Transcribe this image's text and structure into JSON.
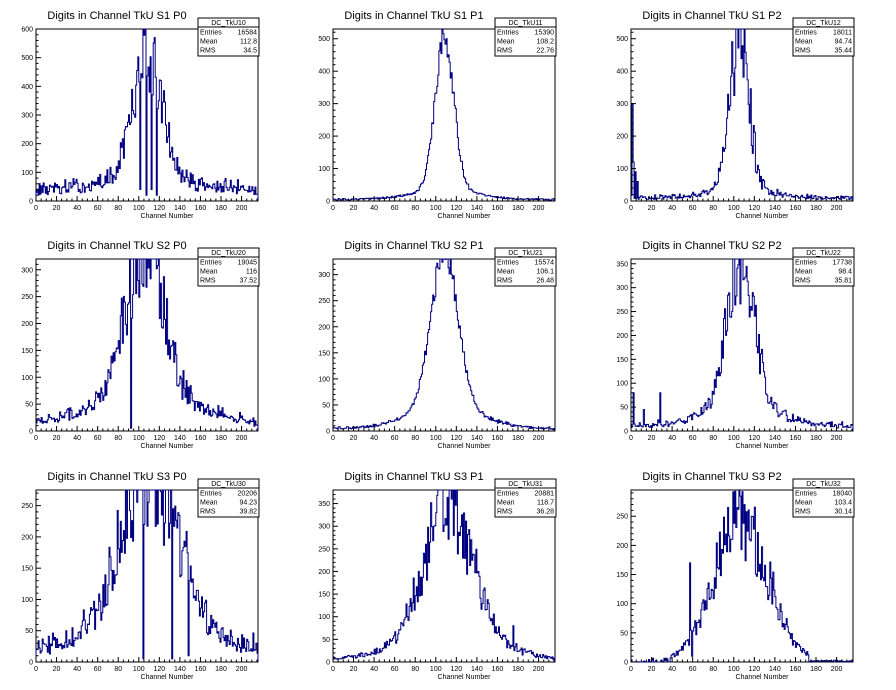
{
  "chart_data": [
    {
      "type": "histogram",
      "title": "Digits in Channel TkU S1 P0",
      "xlabel": "Channel Number",
      "xlim": [
        0,
        216
      ],
      "ylim": [
        0,
        600
      ],
      "xticks": [
        0,
        20,
        40,
        60,
        80,
        100,
        120,
        140,
        160,
        180,
        200
      ],
      "yticks": [
        0,
        100,
        200,
        300,
        400,
        500,
        600
      ],
      "stats": {
        "name": "DC_TkU10",
        "rows": [
          [
            "Entries",
            "16584"
          ],
          [
            "Mean",
            "112.8"
          ],
          [
            "RMS",
            "34.5"
          ]
        ]
      },
      "shape": {
        "peak": 108,
        "sigma": 14,
        "height": 450,
        "baseline": 40,
        "tailWidth": 40,
        "tailAmp": 40,
        "noise": 0.25
      },
      "spikes": [
        [
          101,
          40
        ],
        [
          103,
          430
        ],
        [
          107,
          20
        ],
        [
          110,
          380
        ],
        [
          112,
          40
        ],
        [
          115,
          570
        ],
        [
          117,
          20
        ],
        [
          119,
          350
        ]
      ]
    },
    {
      "type": "histogram",
      "title": "Digits in Channel TkU S1 P1",
      "xlabel": "Channel Number",
      "xlim": [
        0,
        216
      ],
      "ylim": [
        0,
        530
      ],
      "xticks": [
        0,
        20,
        40,
        60,
        80,
        100,
        120,
        140,
        160,
        180,
        200
      ],
      "yticks": [
        0,
        100,
        200,
        300,
        400,
        500
      ],
      "stats": {
        "name": "DC_TkU11",
        "rows": [
          [
            "Entries",
            "15390"
          ],
          [
            "Mean",
            "108.2"
          ],
          [
            "RMS",
            "22.76"
          ]
        ]
      },
      "shape": {
        "peak": 108,
        "sigma": 9,
        "height": 480,
        "baseline": 5,
        "tailWidth": 30,
        "tailAmp": 30,
        "noise": 0.1
      },
      "spikes": []
    },
    {
      "type": "histogram",
      "title": "Digits in Channel TkU S1 P2",
      "xlabel": "Channel Number",
      "xlim": [
        0,
        216
      ],
      "ylim": [
        0,
        530
      ],
      "xticks": [
        0,
        20,
        40,
        60,
        80,
        100,
        120,
        140,
        160,
        180,
        200
      ],
      "yticks": [
        0,
        100,
        200,
        300,
        400,
        500
      ],
      "stats": {
        "name": "DC_TkU12",
        "rows": [
          [
            "Entries",
            "18011"
          ],
          [
            "Mean",
            "94.74"
          ],
          [
            "RMS",
            "35.44"
          ]
        ]
      },
      "shape": {
        "peak": 105,
        "sigma": 9,
        "height": 480,
        "baseline": 10,
        "tailWidth": 28,
        "tailAmp": 30,
        "noise": 0.35
      },
      "spikes": [
        [
          1,
          300
        ],
        [
          2,
          120
        ],
        [
          4,
          90
        ],
        [
          6,
          60
        ]
      ]
    },
    {
      "type": "histogram",
      "title": "Digits in Channel TkU S2 P0",
      "xlabel": "Channel Number",
      "xlim": [
        0,
        216
      ],
      "ylim": [
        0,
        320
      ],
      "xticks": [
        0,
        20,
        40,
        60,
        80,
        100,
        120,
        140,
        160,
        180,
        200
      ],
      "yticks": [
        0,
        50,
        100,
        150,
        200,
        250,
        300
      ],
      "stats": {
        "name": "DC_TkU20",
        "rows": [
          [
            "Entries",
            "19045"
          ],
          [
            "Mean",
            "116"
          ],
          [
            "RMS",
            "37.52"
          ]
        ]
      },
      "shape": {
        "peak": 105,
        "sigma": 17,
        "height": 290,
        "baseline": 15,
        "tailWidth": 45,
        "tailAmp": 60,
        "noise": 0.3
      },
      "spikes": [
        [
          92,
          5
        ],
        [
          93,
          210
        ]
      ]
    },
    {
      "type": "histogram",
      "title": "Digits in Channel TkU S2 P1",
      "xlabel": "Channel Number",
      "xlim": [
        0,
        216
      ],
      "ylim": [
        0,
        330
      ],
      "xticks": [
        0,
        20,
        40,
        60,
        80,
        100,
        120,
        140,
        160,
        180,
        200
      ],
      "yticks": [
        0,
        50,
        100,
        150,
        200,
        250,
        300
      ],
      "stats": {
        "name": "DC_TkU21",
        "rows": [
          [
            "Entries",
            "15574"
          ],
          [
            "Mean",
            "106.1"
          ],
          [
            "RMS",
            "26.48"
          ]
        ]
      },
      "shape": {
        "peak": 108,
        "sigma": 13,
        "height": 300,
        "baseline": 5,
        "tailWidth": 35,
        "tailAmp": 40,
        "noise": 0.08
      },
      "spikes": []
    },
    {
      "type": "histogram",
      "title": "Digits in Channel TkU S2 P2",
      "xlabel": "Channel Number",
      "xlim": [
        0,
        216
      ],
      "ylim": [
        0,
        360
      ],
      "xticks": [
        0,
        20,
        40,
        60,
        80,
        100,
        120,
        140,
        160,
        180,
        200
      ],
      "yticks": [
        0,
        50,
        100,
        150,
        200,
        250,
        300,
        350
      ],
      "stats": {
        "name": "DC_TkU22",
        "rows": [
          [
            "Entries",
            "17738"
          ],
          [
            "Mean",
            "98.4"
          ],
          [
            "RMS",
            "35.81"
          ]
        ]
      },
      "shape": {
        "peak": 107,
        "sigma": 13,
        "height": 320,
        "baseline": 10,
        "tailWidth": 38,
        "tailAmp": 40,
        "noise": 0.3
      },
      "spikes": [
        [
          2,
          80
        ],
        [
          12,
          45
        ],
        [
          28,
          80
        ]
      ]
    },
    {
      "type": "histogram",
      "title": "Digits in Channel TkU S3 P0",
      "xlabel": "Channel Number",
      "xlim": [
        0,
        216
      ],
      "ylim": [
        0,
        275
      ],
      "xticks": [
        0,
        20,
        40,
        60,
        80,
        100,
        120,
        140,
        160,
        180,
        200
      ],
      "yticks": [
        0,
        50,
        100,
        150,
        200,
        250
      ],
      "stats": {
        "name": "DC_TkU30",
        "rows": [
          [
            "Entries",
            "20206"
          ],
          [
            "Mean",
            "94.23"
          ],
          [
            "RMS",
            "39.82"
          ]
        ]
      },
      "shape": {
        "peak": 110,
        "sigma": 28,
        "height": 235,
        "baseline": 25,
        "tailWidth": 40,
        "tailAmp": 40,
        "noise": 0.3
      },
      "spikes": [
        [
          104,
          5
        ],
        [
          105,
          220
        ],
        [
          132,
          5
        ],
        [
          133,
          245
        ],
        [
          148,
          10
        ],
        [
          149,
          130
        ]
      ]
    },
    {
      "type": "histogram",
      "title": "Digits in Channel TkU S3 P1",
      "xlabel": "Channel Number",
      "xlim": [
        0,
        216
      ],
      "ylim": [
        0,
        380
      ],
      "xticks": [
        0,
        20,
        40,
        60,
        80,
        100,
        120,
        140,
        160,
        180,
        200
      ],
      "yticks": [
        0,
        50,
        100,
        150,
        200,
        250,
        300,
        350
      ],
      "stats": {
        "name": "DC_TkU31",
        "rows": [
          [
            "Entries",
            "20881"
          ],
          [
            "Mean",
            "118.7"
          ],
          [
            "RMS",
            "36.28"
          ]
        ]
      },
      "shape": {
        "peak": 112,
        "sigma": 22,
        "height": 300,
        "baseline": 5,
        "tailWidth": 45,
        "tailAmp": 60,
        "noise": 0.3
      },
      "spikes": [
        [
          115,
          360
        ],
        [
          100,
          330
        ],
        [
          175,
          80
        ]
      ]
    },
    {
      "type": "histogram",
      "title": "Digits in Channel TkU S3 P2",
      "xlabel": "Channel Number",
      "xlim": [
        0,
        216
      ],
      "ylim": [
        0,
        295
      ],
      "xticks": [
        0,
        20,
        40,
        60,
        80,
        100,
        120,
        140,
        160,
        180,
        200
      ],
      "yticks": [
        0,
        50,
        100,
        150,
        200,
        250
      ],
      "stats": {
        "name": "DC_TkU32",
        "rows": [
          [
            "Entries",
            "18040"
          ],
          [
            "Mean",
            "103.4"
          ],
          [
            "RMS",
            "30.14"
          ]
        ]
      },
      "shape": {
        "peak": 107,
        "sigma": 26,
        "height": 240,
        "baseline": 3,
        "tailWidth": 0,
        "tailAmp": 0,
        "noise": 0.3,
        "lowCut": 38,
        "highCut": 172
      },
      "spikes": [
        [
          57,
          170
        ],
        [
          59,
          10
        ],
        [
          110,
          270
        ]
      ]
    }
  ]
}
